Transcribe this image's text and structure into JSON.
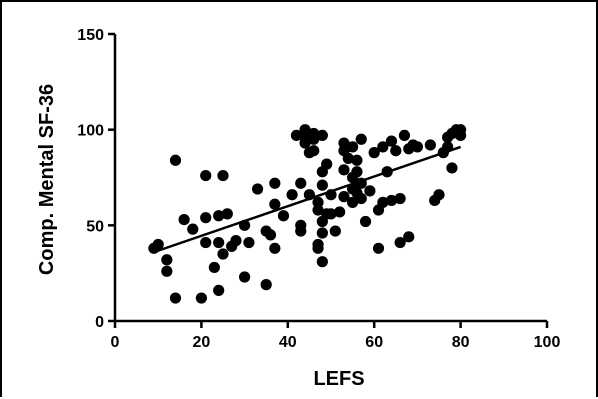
{
  "chart_data": {
    "type": "scatter",
    "title": "",
    "xlabel": "LEFS",
    "ylabel": "Comp. Mental SF-36",
    "xlim": [
      0,
      100
    ],
    "ylim": [
      0,
      150
    ],
    "x_ticks": [
      0,
      20,
      40,
      60,
      80,
      100
    ],
    "y_ticks": [
      0,
      50,
      100,
      150
    ],
    "grid": false,
    "legend": "none",
    "marker_color": "#000000",
    "points": [
      {
        "x": 9,
        "y": 38
      },
      {
        "x": 10,
        "y": 40
      },
      {
        "x": 12,
        "y": 32
      },
      {
        "x": 12,
        "y": 26
      },
      {
        "x": 14,
        "y": 12
      },
      {
        "x": 14,
        "y": 84
      },
      {
        "x": 16,
        "y": 53
      },
      {
        "x": 18,
        "y": 48
      },
      {
        "x": 20,
        "y": 12
      },
      {
        "x": 21,
        "y": 54
      },
      {
        "x": 21,
        "y": 41
      },
      {
        "x": 21,
        "y": 76
      },
      {
        "x": 23,
        "y": 28
      },
      {
        "x": 24,
        "y": 41
      },
      {
        "x": 24,
        "y": 55
      },
      {
        "x": 24,
        "y": 16
      },
      {
        "x": 25,
        "y": 76
      },
      {
        "x": 25,
        "y": 35
      },
      {
        "x": 26,
        "y": 56
      },
      {
        "x": 27,
        "y": 39
      },
      {
        "x": 28,
        "y": 42
      },
      {
        "x": 30,
        "y": 23
      },
      {
        "x": 30,
        "y": 50
      },
      {
        "x": 31,
        "y": 41
      },
      {
        "x": 33,
        "y": 69
      },
      {
        "x": 35,
        "y": 19
      },
      {
        "x": 35,
        "y": 47
      },
      {
        "x": 36,
        "y": 45
      },
      {
        "x": 37,
        "y": 61
      },
      {
        "x": 37,
        "y": 38
      },
      {
        "x": 37,
        "y": 72
      },
      {
        "x": 39,
        "y": 55
      },
      {
        "x": 41,
        "y": 66
      },
      {
        "x": 42,
        "y": 97
      },
      {
        "x": 43,
        "y": 50
      },
      {
        "x": 43,
        "y": 47
      },
      {
        "x": 43,
        "y": 72
      },
      {
        "x": 44,
        "y": 93
      },
      {
        "x": 44,
        "y": 96
      },
      {
        "x": 44,
        "y": 100
      },
      {
        "x": 45,
        "y": 88
      },
      {
        "x": 45,
        "y": 66
      },
      {
        "x": 46,
        "y": 95
      },
      {
        "x": 46,
        "y": 98
      },
      {
        "x": 46,
        "y": 89
      },
      {
        "x": 47,
        "y": 40
      },
      {
        "x": 47,
        "y": 38
      },
      {
        "x": 47,
        "y": 58
      },
      {
        "x": 47,
        "y": 62
      },
      {
        "x": 48,
        "y": 97
      },
      {
        "x": 48,
        "y": 52
      },
      {
        "x": 48,
        "y": 46
      },
      {
        "x": 48,
        "y": 31
      },
      {
        "x": 48,
        "y": 78
      },
      {
        "x": 48,
        "y": 71
      },
      {
        "x": 49,
        "y": 56
      },
      {
        "x": 49,
        "y": 82
      },
      {
        "x": 50,
        "y": 66
      },
      {
        "x": 50,
        "y": 56
      },
      {
        "x": 51,
        "y": 47
      },
      {
        "x": 52,
        "y": 57
      },
      {
        "x": 53,
        "y": 89
      },
      {
        "x": 53,
        "y": 93
      },
      {
        "x": 53,
        "y": 79
      },
      {
        "x": 53,
        "y": 65
      },
      {
        "x": 54,
        "y": 85
      },
      {
        "x": 55,
        "y": 91
      },
      {
        "x": 55,
        "y": 75
      },
      {
        "x": 55,
        "y": 69
      },
      {
        "x": 55,
        "y": 62
      },
      {
        "x": 56,
        "y": 67
      },
      {
        "x": 56,
        "y": 78
      },
      {
        "x": 56,
        "y": 84
      },
      {
        "x": 57,
        "y": 95
      },
      {
        "x": 57,
        "y": 64
      },
      {
        "x": 57,
        "y": 72
      },
      {
        "x": 58,
        "y": 52
      },
      {
        "x": 59,
        "y": 68
      },
      {
        "x": 60,
        "y": 88
      },
      {
        "x": 61,
        "y": 38
      },
      {
        "x": 61,
        "y": 58
      },
      {
        "x": 62,
        "y": 91
      },
      {
        "x": 62,
        "y": 62
      },
      {
        "x": 63,
        "y": 78
      },
      {
        "x": 64,
        "y": 94
      },
      {
        "x": 64,
        "y": 63
      },
      {
        "x": 65,
        "y": 89
      },
      {
        "x": 66,
        "y": 41
      },
      {
        "x": 66,
        "y": 64
      },
      {
        "x": 67,
        "y": 97
      },
      {
        "x": 68,
        "y": 44
      },
      {
        "x": 68,
        "y": 90
      },
      {
        "x": 69,
        "y": 92
      },
      {
        "x": 70,
        "y": 91
      },
      {
        "x": 73,
        "y": 92
      },
      {
        "x": 74,
        "y": 63
      },
      {
        "x": 75,
        "y": 66
      },
      {
        "x": 76,
        "y": 88
      },
      {
        "x": 77,
        "y": 96
      },
      {
        "x": 77,
        "y": 91
      },
      {
        "x": 78,
        "y": 80
      },
      {
        "x": 78,
        "y": 98
      },
      {
        "x": 79,
        "y": 100
      },
      {
        "x": 80,
        "y": 100
      },
      {
        "x": 80,
        "y": 97
      }
    ],
    "trendline": {
      "x": [
        9,
        80
      ],
      "y": [
        36,
        91
      ]
    }
  }
}
